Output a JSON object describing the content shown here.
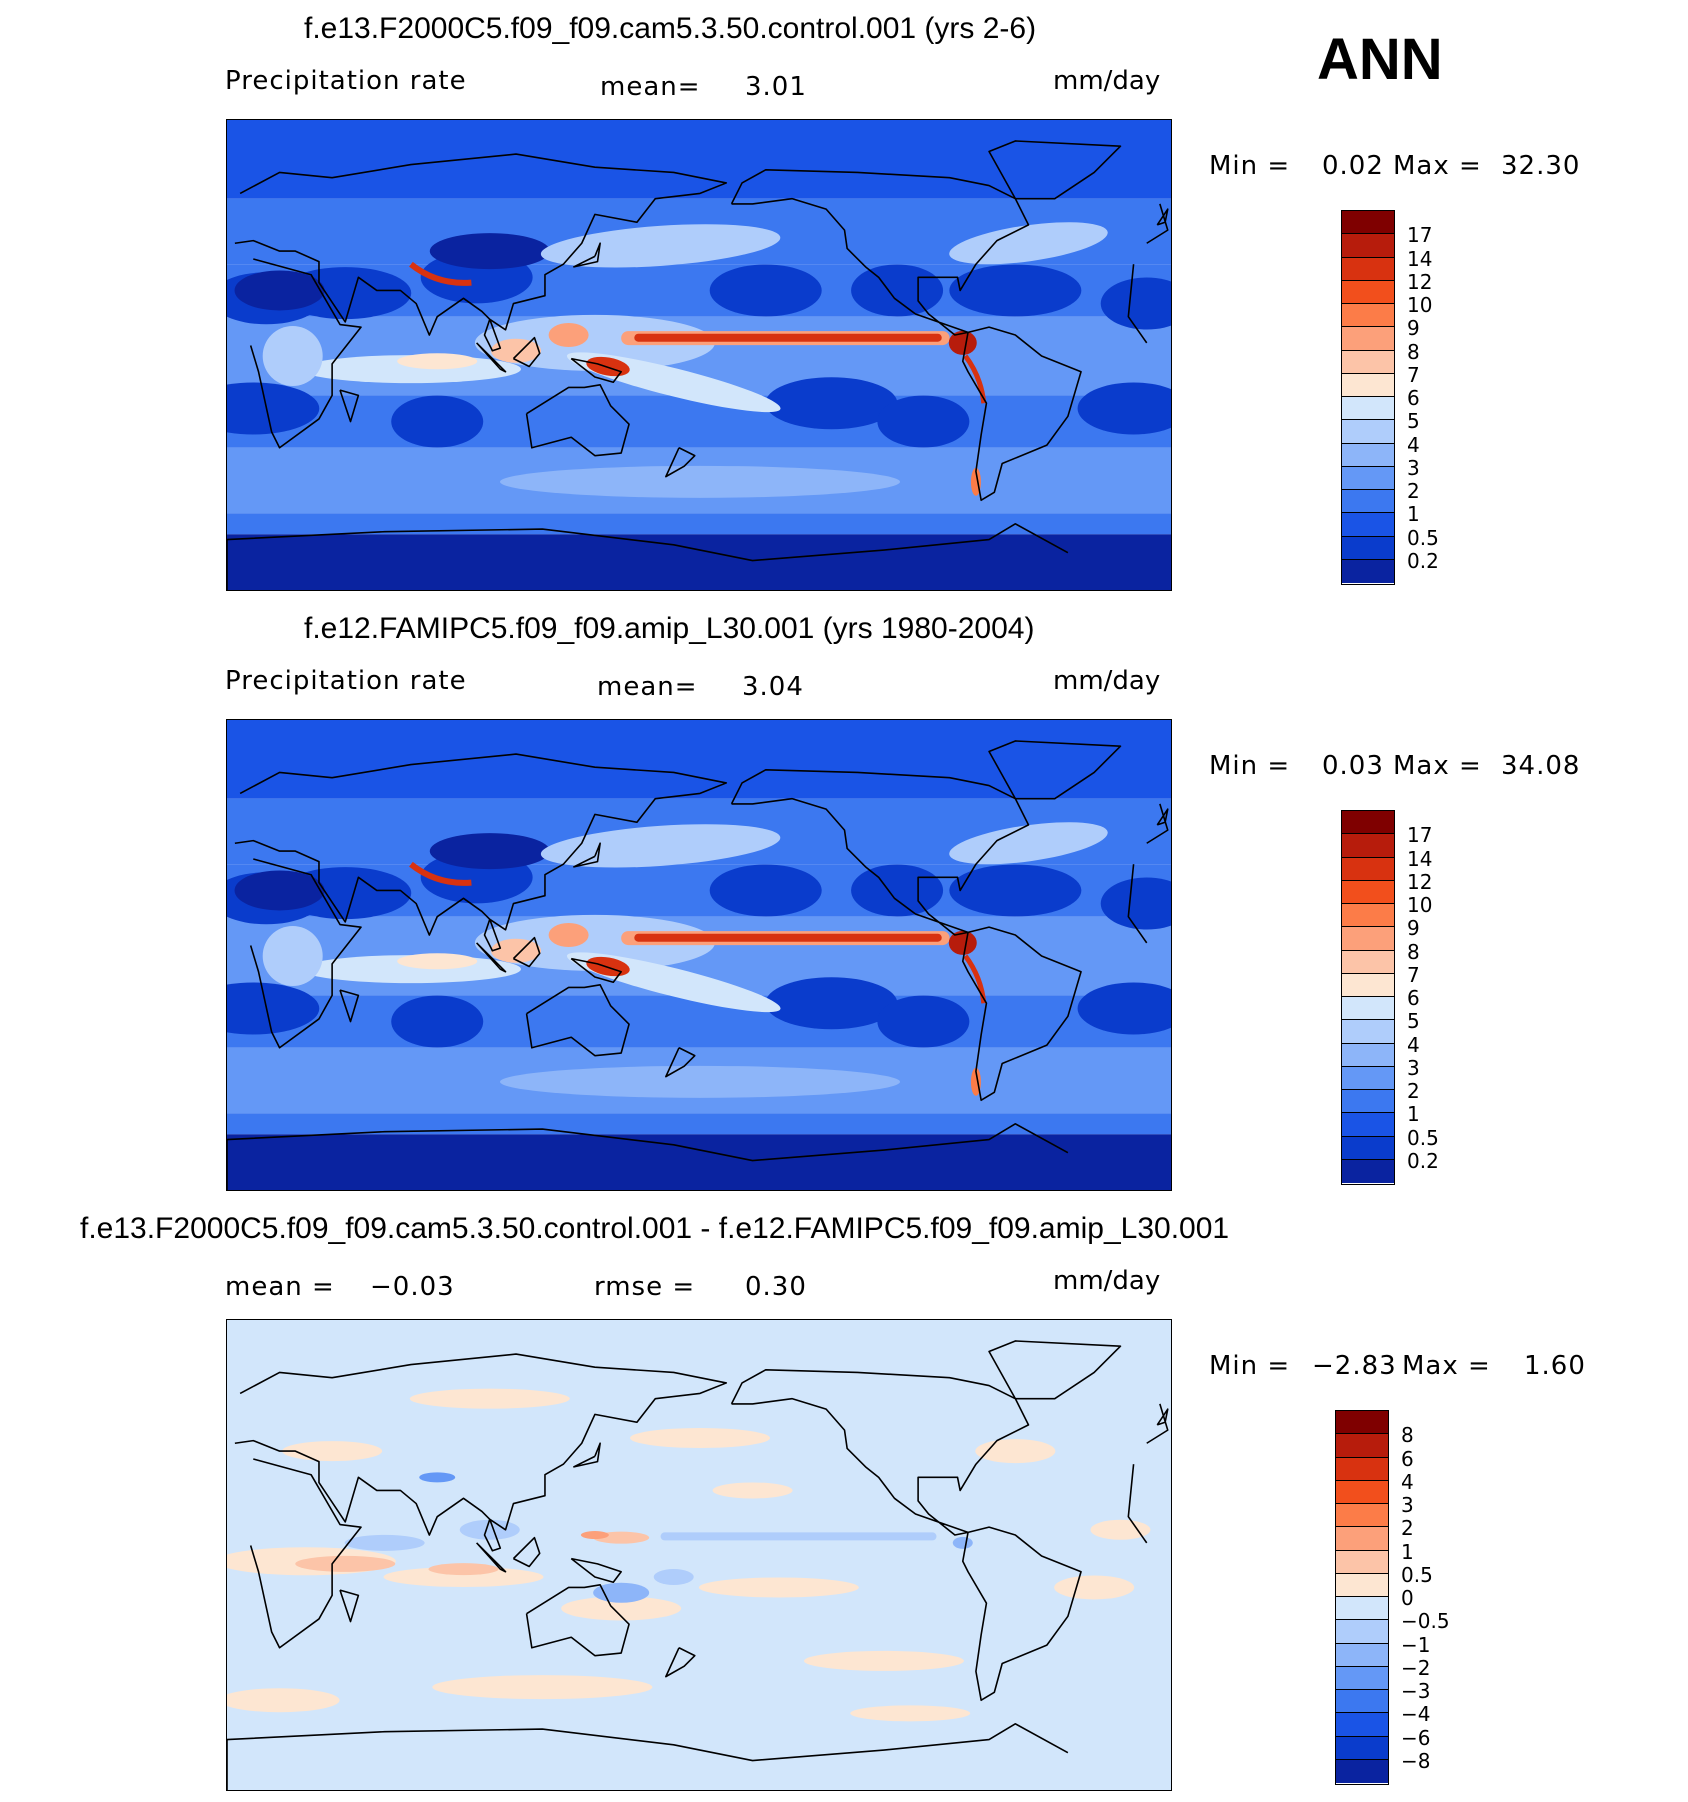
{
  "season": "ANN",
  "panels": [
    {
      "title": "f.e13.F2000C5.f09_f09.cam5.3.50.control.001 (yrs 2-6)",
      "left_label": "Precipitation  rate",
      "center_label": "mean=",
      "center_value": "3.01",
      "units": "mm/day",
      "min_label": "Min =",
      "min_value": "0.02",
      "max_label": "Max =",
      "max_value": "32.30",
      "colorbar_ticks": [
        "17",
        "14",
        "12",
        "10",
        "9",
        "8",
        "7",
        "6",
        "5",
        "4",
        "3",
        "2",
        "1",
        "0.5",
        "0.2"
      ],
      "colorbar_colors": [
        "#7f0000",
        "#b71c0c",
        "#d83210",
        "#f24f1c",
        "#fc7c48",
        "#fca07a",
        "#fcc4a8",
        "#fde6d2",
        "#d2e6fb",
        "#afcdfb",
        "#8db5f9",
        "#6498f6",
        "#3c78f0",
        "#1a54e6",
        "#0a3ccc",
        "#0a23a0"
      ],
      "map_style": "precip",
      "mean_precip_mm_day": 3.01
    },
    {
      "title": "f.e12.FAMIPC5.f09_f09.amip_L30.001 (yrs 1980-2004)",
      "left_label": "Precipitation  rate",
      "center_label": "mean=",
      "center_value": "3.04",
      "units": "mm/day",
      "min_label": "Min =",
      "min_value": "0.03",
      "max_label": "Max =",
      "max_value": "34.08",
      "colorbar_ticks": [
        "17",
        "14",
        "12",
        "10",
        "9",
        "8",
        "7",
        "6",
        "5",
        "4",
        "3",
        "2",
        "1",
        "0.5",
        "0.2"
      ],
      "colorbar_colors": [
        "#7f0000",
        "#b71c0c",
        "#d83210",
        "#f24f1c",
        "#fc7c48",
        "#fca07a",
        "#fcc4a8",
        "#fde6d2",
        "#d2e6fb",
        "#afcdfb",
        "#8db5f9",
        "#6498f6",
        "#3c78f0",
        "#1a54e6",
        "#0a3ccc",
        "#0a23a0"
      ],
      "map_style": "precip",
      "mean_precip_mm_day": 3.04
    },
    {
      "title": "f.e13.F2000C5.f09_f09.cam5.3.50.control.001 - f.e12.FAMIPC5.f09_f09.amip_L30.001",
      "left_label": "mean =",
      "left_value": "−0.03",
      "center_label": "rmse =",
      "center_value": "0.30",
      "units": "mm/day",
      "min_label": "Min =",
      "min_value": "−2.83",
      "max_label": "Max =",
      "max_value": "1.60",
      "colorbar_ticks": [
        "8",
        "6",
        "4",
        "3",
        "2",
        "1",
        "0.5",
        "0",
        "−0.5",
        "−1",
        "−2",
        "−3",
        "−4",
        "−6",
        "−8"
      ],
      "colorbar_colors": [
        "#7f0000",
        "#b71c0c",
        "#d83210",
        "#f24f1c",
        "#fc7c48",
        "#fca07a",
        "#fcc4a8",
        "#fde6d2",
        "#d2e6fb",
        "#afcdfb",
        "#8db5f9",
        "#6498f6",
        "#3c78f0",
        "#1a54e6",
        "#0a3ccc",
        "#0a23a0"
      ],
      "map_style": "diff"
    }
  ]
}
